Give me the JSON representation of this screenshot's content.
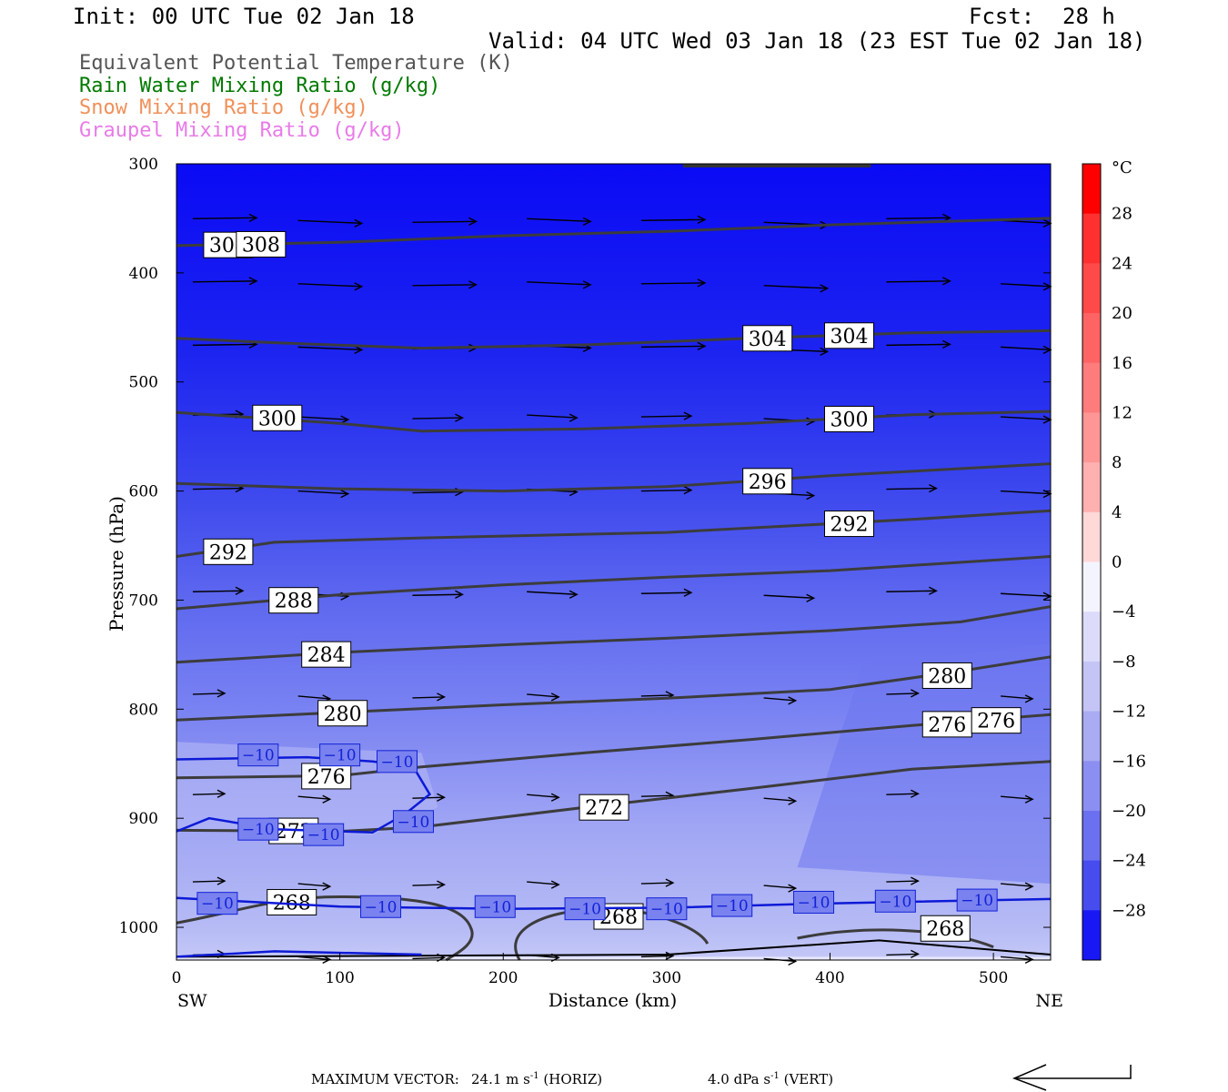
{
  "header": {
    "init": "Init: 00 UTC Tue 02 Jan 18",
    "fcst_label": "Fcst:",
    "fcst_value": "28 h",
    "valid": "Valid: 04 UTC Wed 03 Jan 18 (23 EST Tue 02 Jan 18)"
  },
  "legend": [
    {
      "label": "Equivalent Potential Temperature (K)",
      "color": "#555555"
    },
    {
      "label": "Rain Water Mixing Ratio (g/kg)",
      "color": "#007a00"
    },
    {
      "label": "Snow Mixing Ratio (g/kg)",
      "color": "#f0905a"
    },
    {
      "label": "Graupel Mixing Ratio (g/kg)",
      "color": "#e87be8"
    }
  ],
  "chart_data": {
    "type": "contour",
    "xlabel": "Distance (km)",
    "ylabel": "Pressure (hPa)",
    "xlim": [
      0,
      535
    ],
    "ylim": [
      1030,
      300
    ],
    "x_ticks": [
      "0",
      "100",
      "200",
      "300",
      "400",
      "500"
    ],
    "y_ticks": [
      "300",
      "400",
      "500",
      "600",
      "700",
      "800",
      "900",
      "1000"
    ],
    "x_left_label": "SW",
    "x_right_label": "NE",
    "colorbar": {
      "unit": "°C",
      "labels": [
        "28",
        "24",
        "20",
        "16",
        "12",
        "8",
        "4",
        "0",
        "−4",
        "−8",
        "−12",
        "−16",
        "−20",
        "−24",
        "−28"
      ],
      "label_values": [
        28,
        24,
        20,
        16,
        12,
        8,
        4,
        0,
        -4,
        -8,
        -12,
        -16,
        -20,
        -24,
        -28
      ],
      "range": [
        -32,
        32
      ]
    },
    "theta_e_contours": [
      {
        "value": 308,
        "points": [
          [
            0,
            375
          ],
          [
            100,
            372
          ],
          [
            200,
            366
          ],
          [
            300,
            362
          ],
          [
            400,
            356
          ],
          [
            535,
            350
          ]
        ]
      },
      {
        "value": 304,
        "points": [
          [
            0,
            460
          ],
          [
            60,
            464
          ],
          [
            150,
            469
          ],
          [
            250,
            466
          ],
          [
            350,
            460
          ],
          [
            450,
            455
          ],
          [
            535,
            453
          ]
        ]
      },
      {
        "value": 300,
        "points": [
          [
            0,
            528
          ],
          [
            100,
            538
          ],
          [
            150,
            545
          ],
          [
            250,
            543
          ],
          [
            350,
            538
          ],
          [
            450,
            530
          ],
          [
            535,
            527
          ]
        ]
      },
      {
        "value": 296,
        "points": [
          [
            0,
            593
          ],
          [
            100,
            598
          ],
          [
            200,
            600
          ],
          [
            300,
            596
          ],
          [
            400,
            586
          ],
          [
            535,
            575
          ]
        ]
      },
      {
        "value": 292,
        "points": [
          [
            0,
            660
          ],
          [
            60,
            647
          ],
          [
            150,
            643
          ],
          [
            300,
            638
          ],
          [
            450,
            626
          ],
          [
            535,
            618
          ]
        ]
      },
      {
        "value": 288,
        "points": [
          [
            0,
            708
          ],
          [
            100,
            695
          ],
          [
            200,
            686
          ],
          [
            300,
            679
          ],
          [
            400,
            673
          ],
          [
            535,
            660
          ]
        ]
      },
      {
        "value": 284,
        "points": [
          [
            0,
            757
          ],
          [
            100,
            748
          ],
          [
            200,
            741
          ],
          [
            300,
            735
          ],
          [
            400,
            728
          ],
          [
            480,
            720
          ],
          [
            535,
            706
          ]
        ]
      },
      {
        "value": 280,
        "points": [
          [
            0,
            810
          ],
          [
            100,
            803
          ],
          [
            200,
            796
          ],
          [
            300,
            790
          ],
          [
            400,
            782
          ],
          [
            480,
            765
          ],
          [
            535,
            752
          ]
        ]
      },
      {
        "value": 276,
        "points": [
          [
            0,
            863
          ],
          [
            100,
            861
          ],
          [
            150,
            853
          ],
          [
            250,
            840
          ],
          [
            350,
            828
          ],
          [
            450,
            815
          ],
          [
            535,
            805
          ]
        ]
      },
      {
        "value": 272,
        "points": [
          [
            0,
            911
          ],
          [
            100,
            912
          ],
          [
            150,
            908
          ],
          [
            250,
            890
          ],
          [
            350,
            873
          ],
          [
            450,
            855
          ],
          [
            535,
            848
          ]
        ]
      }
    ],
    "temp_minus10_contours": [
      {
        "value": -10,
        "points": [
          [
            0,
            846
          ],
          [
            80,
            844
          ],
          [
            120,
            848
          ],
          [
            145,
            853
          ],
          [
            155,
            878
          ],
          [
            140,
            896
          ],
          [
            120,
            913
          ],
          [
            60,
            910
          ],
          [
            20,
            900
          ],
          [
            0,
            912
          ]
        ]
      },
      {
        "value": -10,
        "points": [
          [
            0,
            973
          ],
          [
            100,
            981
          ],
          [
            200,
            983
          ],
          [
            300,
            982
          ],
          [
            400,
            978
          ],
          [
            535,
            974
          ]
        ]
      }
    ],
    "wind_speed_max": "24.1",
    "vert_max": "4.0"
  },
  "footer": {
    "max_vector_label": "MAXIMUM VECTOR:",
    "horiz": "24.1 m s",
    "horiz_sup": "-1",
    "horiz_suffix": "(HORIZ)",
    "vert": "4.0 dPa s",
    "vert_sup": "-1",
    "vert_suffix": "(VERT)"
  }
}
